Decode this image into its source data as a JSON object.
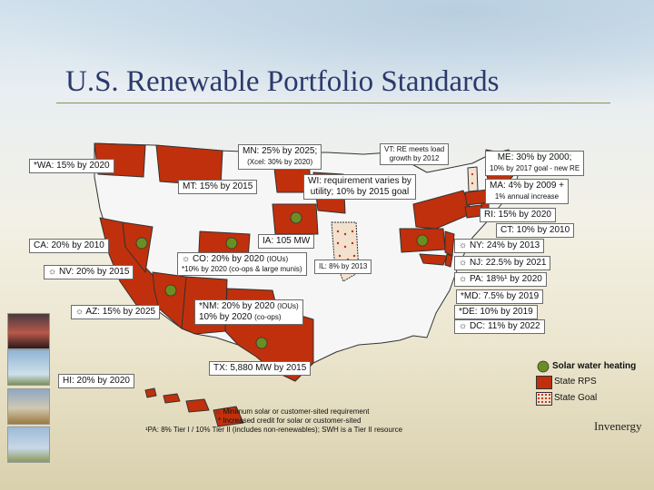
{
  "title": "U.S. Renewable Portfolio Standards",
  "colors": {
    "state_rps": "#c0300c",
    "solar_dot": "#6b8e23",
    "state_goal_fill": "#f3e1cf",
    "state_goal_dot": "#c0300c",
    "no_policy": "#f6f6f6"
  },
  "states": {
    "wa": {
      "name": "*WA: 15% by 2020"
    },
    "mn": {
      "name": "MN: 25% by 2025;",
      "sub": "(Xcel: 30% by 2020)"
    },
    "vt": {
      "line1": "VT: RE meets load",
      "line2": "growth by 2012"
    },
    "me": {
      "name": "ME: 30% by 2000;",
      "sub": "10% by 2017 goal - new RE"
    },
    "mt": {
      "name": "MT: 15% by 2015"
    },
    "wi": {
      "line1": "WI: requirement varies by",
      "line2": "utility; 10% by 2015 goal"
    },
    "ma": {
      "name": "MA: 4% by 2009 +",
      "sub": "1% annual increase"
    },
    "ri": {
      "name": "RI: 15% by 2020"
    },
    "ct": {
      "name": "CT: 10% by 2010"
    },
    "ia": {
      "name": "IA: 105 MW"
    },
    "ca": {
      "name": "CA: 20% by 2010"
    },
    "ny": {
      "name": "NY: 24% by 2013"
    },
    "co": {
      "name": "CO: 20% by 2020",
      "unit": "(IOUs)",
      "sub": "*10% by 2020 (co-ops & large munis)"
    },
    "il": {
      "name": "IL: 8% by 2013"
    },
    "nj": {
      "name": "NJ: 22.5% by 2021"
    },
    "nv": {
      "name": "NV: 20% by 2015"
    },
    "pa": {
      "name": "PA: 18%¹ by 2020"
    },
    "md": {
      "name": "*MD: 7.5% by 2019"
    },
    "az": {
      "name": "AZ: 15% by 2025"
    },
    "nm": {
      "line1a": "*NM: 20% by 2020",
      "line1b": "(IOUs)",
      "line2a": "10% by 2020",
      "line2b": "(co-ops)"
    },
    "de": {
      "name": "*DE: 10% by 2019"
    },
    "dc": {
      "name": "DC: 11% by 2022"
    },
    "tx": {
      "name": "TX: 5,880 MW by 2015"
    },
    "hi": {
      "name": "HI: 20% by 2020"
    }
  },
  "sun_glyph": "☼",
  "legend": {
    "solar": "Solar water heating",
    "rps": "State RPS",
    "goal": "State Goal"
  },
  "footnotes": {
    "f1": "Minimum solar or customer-sited requirement",
    "f2": "* Increased credit for solar or customer-sited",
    "f3": "¹PA: 8% Tier I / 10% Tier II (includes non-renewables); SWH is a Tier II resource"
  },
  "logo": "Invenergy"
}
